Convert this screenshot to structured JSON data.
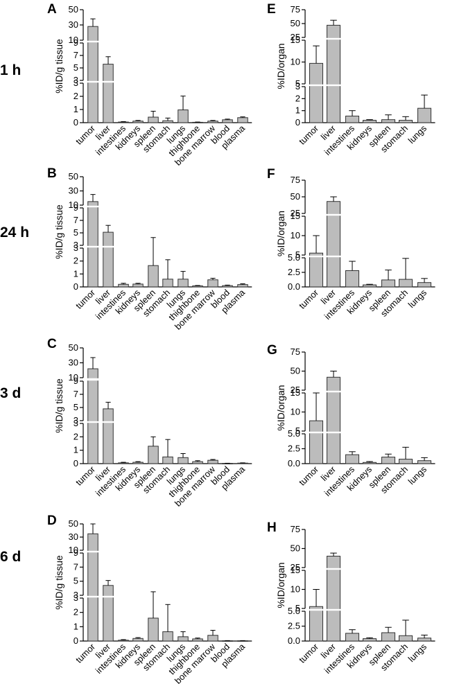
{
  "figure": {
    "row_labels": [
      "1 h",
      "24 h",
      "3 d",
      "6 d"
    ]
  },
  "chart_data": [
    {
      "panel": "A",
      "type": "bar",
      "ylabel": "%ID/g tissue",
      "categories": [
        "tumor",
        "liver",
        "intestines",
        "kidneys",
        "spleen",
        "stomach",
        "lungs",
        "thighbone",
        "bone marrow",
        "blood",
        "plasma"
      ],
      "values": [
        28,
        5.6,
        0.05,
        0.12,
        0.42,
        0.15,
        0.97,
        0.03,
        0.12,
        0.22,
        0.38
      ],
      "errors": [
        10,
        1.2,
        0.03,
        0.05,
        0.45,
        0.2,
        1.05,
        0.02,
        0.05,
        0.05,
        0.06
      ],
      "axis_segments": [
        {
          "range": [
            0,
            3
          ],
          "ticks": [
            0,
            1,
            2,
            3
          ]
        },
        {
          "range": [
            3,
            9
          ],
          "ticks": [
            3,
            5,
            7,
            9
          ]
        },
        {
          "range": [
            10,
            50
          ],
          "ticks": [
            10,
            30,
            50
          ]
        }
      ]
    },
    {
      "panel": "B",
      "type": "bar",
      "ylabel": "%ID/g tissue",
      "categories": [
        "tumor",
        "liver",
        "intestines",
        "kidneys",
        "spleen",
        "stomach",
        "lungs",
        "thighbone",
        "bone marrow",
        "blood",
        "plasma"
      ],
      "values": [
        15,
        5.1,
        0.2,
        0.22,
        1.65,
        0.6,
        0.6,
        0.08,
        0.55,
        0.1,
        0.18
      ],
      "errors": [
        10,
        1.1,
        0.08,
        0.06,
        2.6,
        1.5,
        0.6,
        0.03,
        0.12,
        0.04,
        0.06
      ],
      "axis_segments": [
        {
          "range": [
            0,
            3
          ],
          "ticks": [
            0,
            1,
            2,
            3
          ]
        },
        {
          "range": [
            3,
            9
          ],
          "ticks": [
            3,
            5,
            7,
            9
          ]
        },
        {
          "range": [
            10,
            50
          ],
          "ticks": [
            10,
            30,
            50
          ]
        }
      ]
    },
    {
      "panel": "C",
      "type": "bar",
      "ylabel": "%ID/g tissue",
      "categories": [
        "tumor",
        "liver",
        "intestines",
        "kidneys",
        "spleen",
        "stomach",
        "lungs",
        "thighbone",
        "bone marrow",
        "blood",
        "plasma"
      ],
      "values": [
        22,
        4.8,
        0.06,
        0.1,
        1.3,
        0.5,
        0.45,
        0.15,
        0.25,
        0.02,
        0.04
      ],
      "errors": [
        15,
        1.0,
        0.04,
        0.05,
        0.7,
        1.3,
        0.3,
        0.07,
        0.06,
        0.01,
        0.02
      ],
      "axis_segments": [
        {
          "range": [
            0,
            3
          ],
          "ticks": [
            0,
            1,
            2,
            3
          ]
        },
        {
          "range": [
            3,
            9
          ],
          "ticks": [
            3,
            5,
            7,
            9
          ]
        },
        {
          "range": [
            10,
            50
          ],
          "ticks": [
            10,
            30,
            50
          ]
        }
      ]
    },
    {
      "panel": "D",
      "type": "bar",
      "ylabel": "%ID/g tissue",
      "categories": [
        "tumor",
        "liver",
        "intestines",
        "kidneys",
        "spleen",
        "stomach",
        "lungs",
        "thighbone",
        "bone marrow",
        "blood",
        "plasma"
      ],
      "values": [
        35,
        4.4,
        0.06,
        0.18,
        1.6,
        0.65,
        0.3,
        0.15,
        0.4,
        0.02,
        0.02
      ],
      "errors": [
        18,
        0.7,
        0.04,
        0.06,
        1.9,
        1.9,
        0.35,
        0.06,
        0.35,
        0.01,
        0.01
      ],
      "axis_segments": [
        {
          "range": [
            0,
            3
          ],
          "ticks": [
            0,
            1,
            2,
            3
          ]
        },
        {
          "range": [
            3,
            9
          ],
          "ticks": [
            3,
            5,
            7,
            9
          ]
        },
        {
          "range": [
            10,
            50
          ],
          "ticks": [
            10,
            30,
            50
          ]
        }
      ]
    },
    {
      "panel": "E",
      "type": "bar",
      "ylabel": "%ID/organ",
      "categories": [
        "tumor",
        "liver",
        "intestines",
        "kidneys",
        "spleen",
        "stomach",
        "lungs"
      ],
      "values": [
        9.7,
        47,
        0.55,
        0.2,
        0.25,
        0.2,
        1.2
      ],
      "errors": [
        4,
        9,
        0.45,
        0.05,
        0.4,
        0.3,
        1.1
      ],
      "axis_segments": [
        {
          "range": [
            0,
            3
          ],
          "ticks": [
            0,
            1,
            2,
            3
          ]
        },
        {
          "range": [
            5,
            15
          ],
          "ticks": [
            5,
            10,
            15
          ]
        },
        {
          "range": [
            25,
            75
          ],
          "ticks": [
            25,
            50,
            75
          ]
        }
      ]
    },
    {
      "panel": "F",
      "type": "bar",
      "ylabel": "%ID/organ",
      "categories": [
        "tumor",
        "liver",
        "intestines",
        "kidneys",
        "spleen",
        "stomach",
        "lungs"
      ],
      "values": [
        5.5,
        43,
        2.8,
        0.35,
        1.2,
        1.3,
        0.75
      ],
      "errors": [
        4.5,
        7,
        1.6,
        0.1,
        1.7,
        3.6,
        0.7
      ],
      "axis_segments": [
        {
          "range": [
            0,
            5
          ],
          "ticks": [
            0.0,
            2.5,
            5.0
          ]
        },
        {
          "range": [
            5,
            15
          ],
          "ticks": [
            5,
            10,
            15
          ]
        },
        {
          "range": [
            25,
            75
          ],
          "ticks": [
            25,
            50,
            75
          ]
        }
      ]
    },
    {
      "panel": "G",
      "type": "bar",
      "ylabel": "%ID/organ",
      "categories": [
        "tumor",
        "liver",
        "intestines",
        "kidneys",
        "spleen",
        "stomach",
        "lungs"
      ],
      "values": [
        7.7,
        42,
        1.5,
        0.2,
        1.1,
        0.75,
        0.5
      ],
      "errors": [
        7.5,
        8,
        0.5,
        0.15,
        0.5,
        2,
        0.5
      ],
      "axis_segments": [
        {
          "range": [
            0,
            5
          ],
          "ticks": [
            0.0,
            2.5,
            5.0
          ]
        },
        {
          "range": [
            5,
            15
          ],
          "ticks": [
            5,
            10,
            15
          ]
        },
        {
          "range": [
            25,
            75
          ],
          "ticks": [
            25,
            50,
            75
          ]
        }
      ]
    },
    {
      "panel": "H",
      "type": "bar",
      "ylabel": "%ID/organ",
      "categories": [
        "tumor",
        "liver",
        "intestines",
        "kidneys",
        "spleen",
        "stomach",
        "lungs"
      ],
      "values": [
        5.5,
        40,
        1.3,
        0.4,
        1.4,
        0.9,
        0.5
      ],
      "errors": [
        4.5,
        4,
        0.6,
        0.15,
        0.9,
        2.6,
        0.5
      ],
      "axis_segments": [
        {
          "range": [
            0,
            5
          ],
          "ticks": [
            0.0,
            2.5,
            5.0
          ]
        },
        {
          "range": [
            5,
            15
          ],
          "ticks": [
            5,
            10,
            15
          ]
        },
        {
          "range": [
            25,
            75
          ],
          "ticks": [
            25,
            50,
            75
          ]
        }
      ]
    }
  ]
}
